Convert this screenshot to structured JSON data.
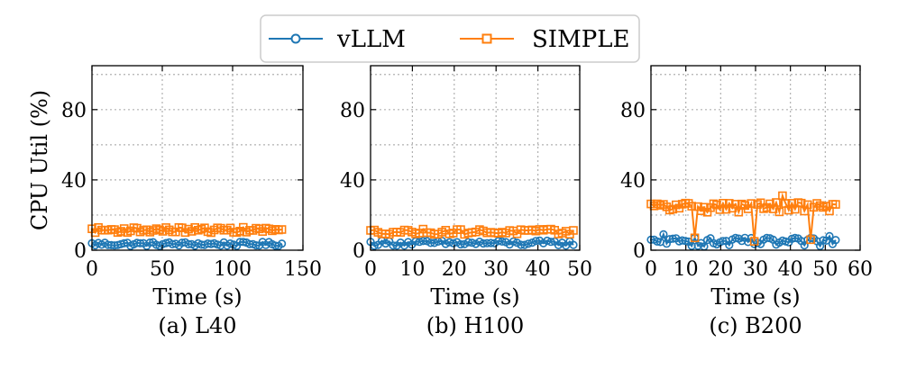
{
  "legend": {
    "entries": [
      {
        "name": "vLLM",
        "color": "#1f77b4",
        "marker": "circle"
      },
      {
        "name": "SIMPLE",
        "color": "#ff7f0e",
        "marker": "square"
      }
    ]
  },
  "ylabel": "CPU Util (%)",
  "chart_data": [
    {
      "type": "line",
      "caption": "(a) L40",
      "xlabel": "Time (s)",
      "ylabel": "CPU Util (%)",
      "xlim": [
        0,
        150
      ],
      "ylim": [
        0,
        105
      ],
      "xticks": [
        "0",
        "50",
        "100",
        "150"
      ],
      "xtick_values": [
        0,
        50,
        100,
        150
      ],
      "yticks": [
        "0",
        "40",
        "80"
      ],
      "ytick_values": [
        0,
        40,
        80
      ],
      "grid": true,
      "series": [
        {
          "name": "vLLM",
          "x_end": 135,
          "base": 3.5,
          "amp": 1.2,
          "points": 60,
          "spikes": []
        },
        {
          "name": "SIMPLE",
          "x_end": 135,
          "base": 11.5,
          "amp": 1.5,
          "points": 60,
          "spikes": []
        }
      ]
    },
    {
      "type": "line",
      "caption": "(b) H100",
      "xlabel": "Time (s)",
      "ylabel": "",
      "xlim": [
        0,
        50
      ],
      "ylim": [
        0,
        105
      ],
      "xticks": [
        "0",
        "10",
        "20",
        "30",
        "40",
        "50"
      ],
      "xtick_values": [
        0,
        10,
        20,
        30,
        40,
        50
      ],
      "yticks": [
        "0",
        "40",
        "80"
      ],
      "ytick_values": [
        0,
        40,
        80
      ],
      "grid": true,
      "series": [
        {
          "name": "vLLM",
          "x_end": 48.5,
          "base": 4,
          "amp": 1.5,
          "points": 55,
          "spikes": []
        },
        {
          "name": "SIMPLE",
          "x_end": 48.5,
          "base": 10.5,
          "amp": 1.5,
          "points": 55,
          "spikes": []
        }
      ]
    },
    {
      "type": "line",
      "caption": "(c) B200",
      "xlabel": "Time (s)",
      "ylabel": "",
      "xlim": [
        0,
        60
      ],
      "ylim": [
        0,
        105
      ],
      "xticks": [
        "0",
        "10",
        "20",
        "30",
        "40",
        "50",
        "60"
      ],
      "xtick_values": [
        0,
        10,
        20,
        30,
        40,
        50,
        60
      ],
      "yticks": [
        "0",
        "40",
        "80"
      ],
      "ytick_values": [
        0,
        40,
        80
      ],
      "grid": true,
      "series": [
        {
          "name": "vLLM",
          "x_end": 53,
          "base": 4.5,
          "amp": 2.5,
          "points": 60,
          "spikes": [
            [
              4,
              9
            ],
            [
              13,
              7
            ],
            [
              27,
              7
            ],
            [
              51,
              8
            ]
          ]
        },
        {
          "name": "SIMPLE",
          "x_end": 53,
          "base": 24.5,
          "amp": 3,
          "points": 60,
          "spikes": [
            [
              13,
              7
            ],
            [
              30,
              5
            ],
            [
              38,
              31
            ],
            [
              45.5,
              6
            ]
          ]
        }
      ]
    }
  ]
}
